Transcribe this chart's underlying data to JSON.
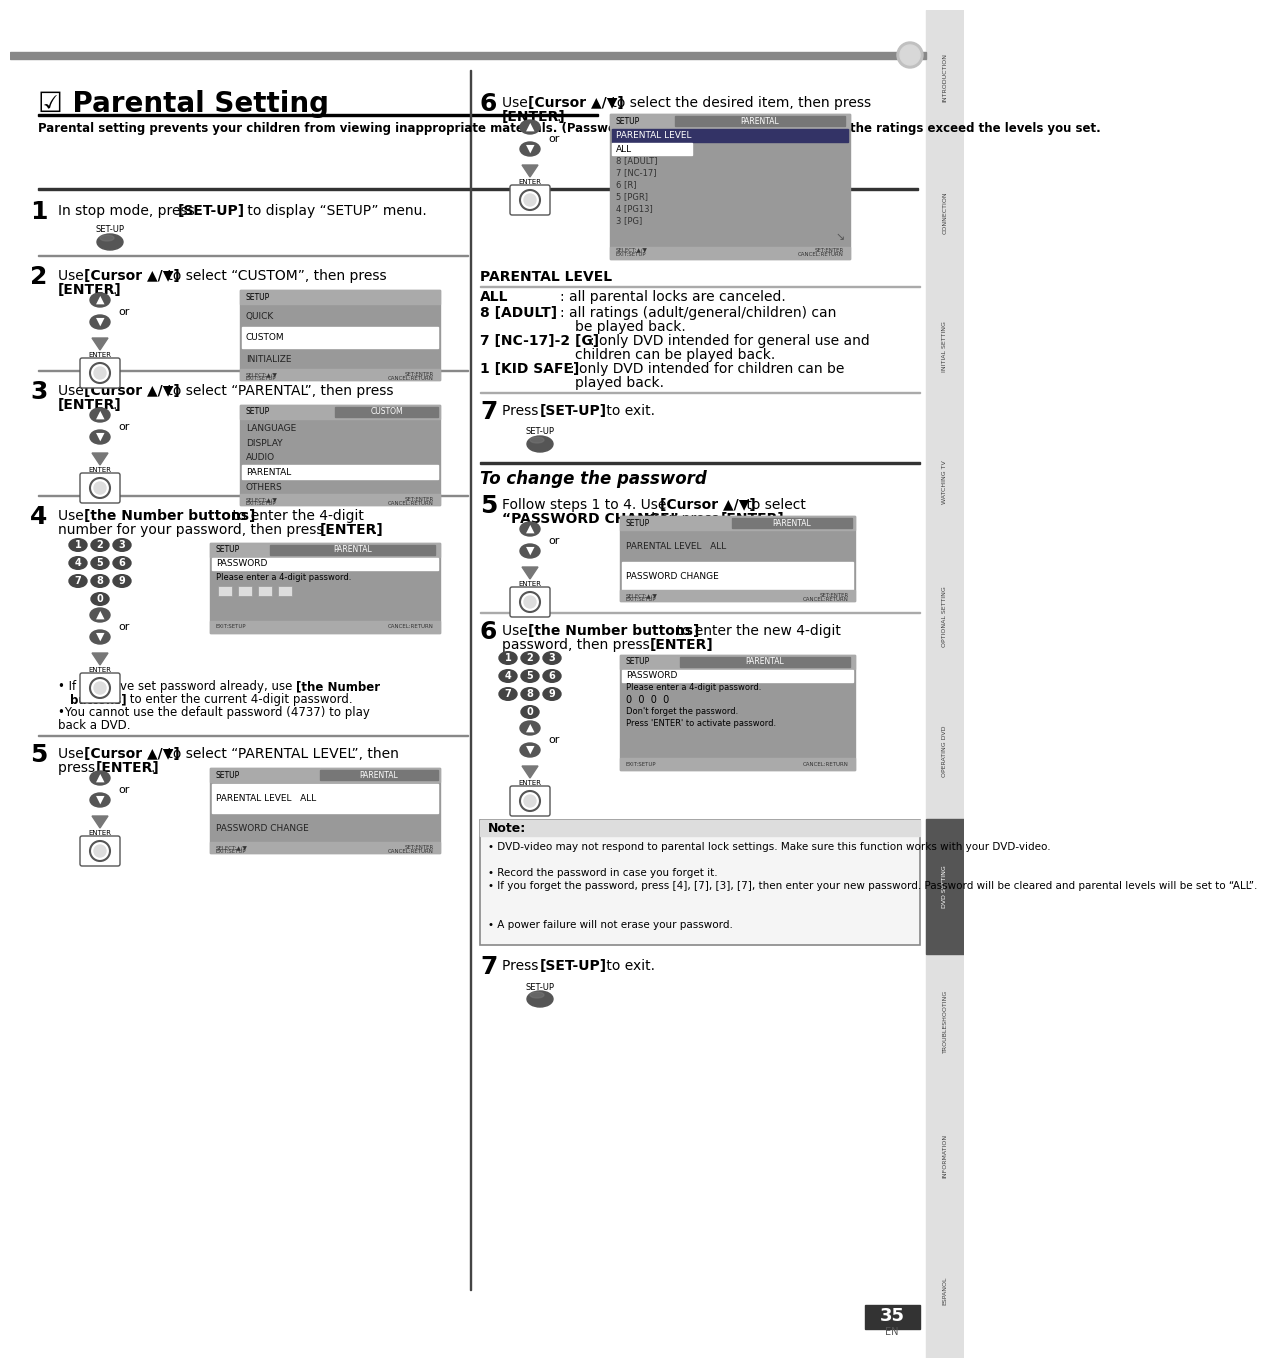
{
  "title": "☑ Parental Setting",
  "intro": "Parental setting prevents your children from viewing inappropriate materials. (Password protected.) Playback will stop if the ratings exceed the levels you set.",
  "page_number": "35",
  "bg_color": "#ffffff",
  "sidebar_labels": [
    "INTRODUCTION",
    "CONNECTION",
    "INITIAL SETTING",
    "WATCHING TV",
    "OPTIONAL SETTING",
    "OPERATING DVD",
    "DVD SETTING",
    "TROUBLESHOOTING",
    "INFORMATION",
    "ESPANOL"
  ],
  "note_box_items": [
    "• DVD-video may not respond to parental lock settings. Make sure this function works with your DVD-video.",
    "• Record the password in case you forget it.",
    "• If you forget the password, press [4], [7], [3], [7], then enter your new password. Password will be cleared and parental levels will be set to “ALL”.",
    "• A power failure will not erase your password."
  ]
}
